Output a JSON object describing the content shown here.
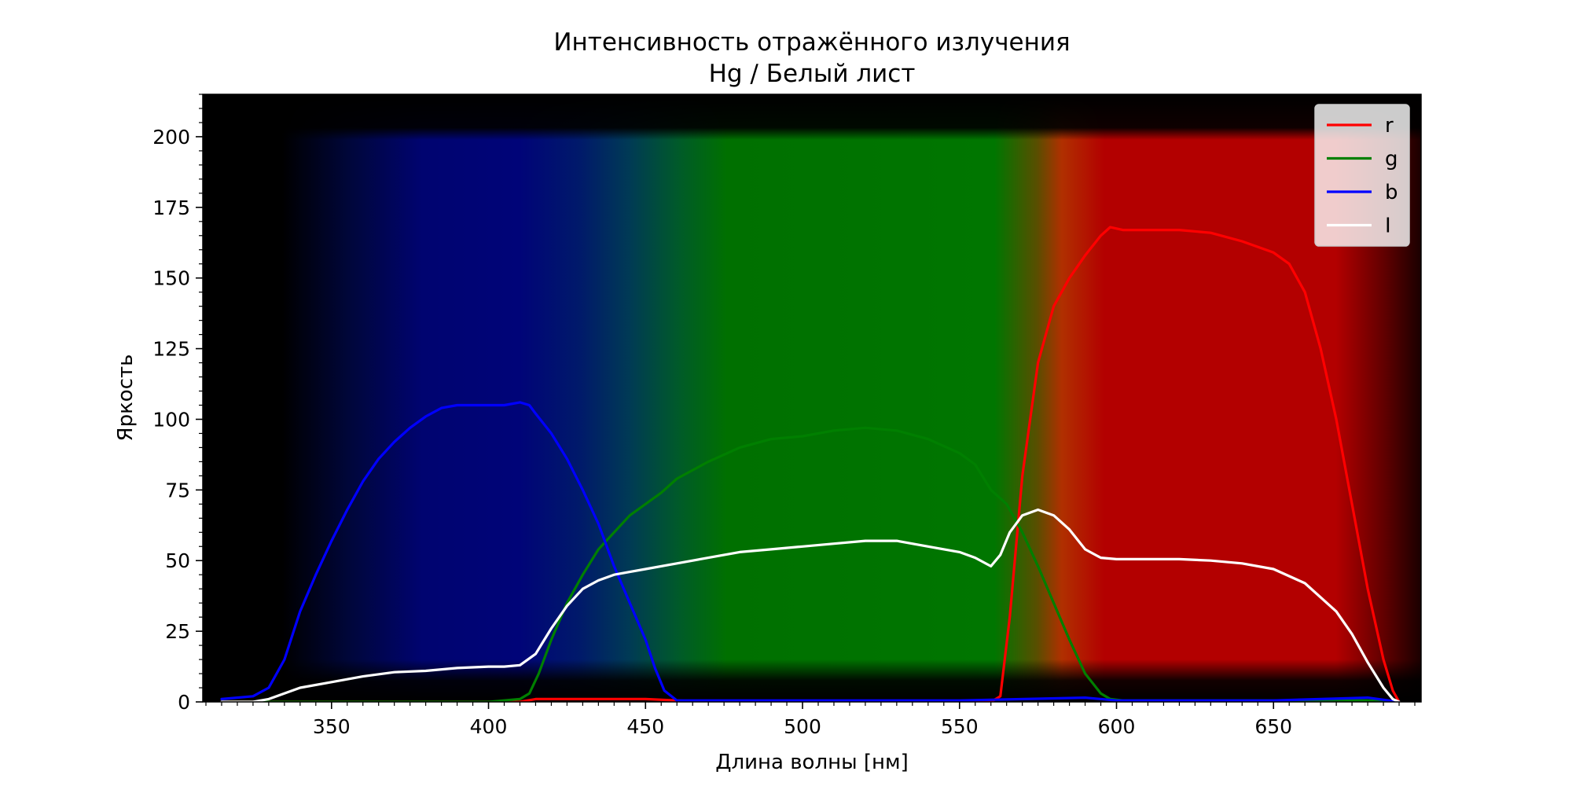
{
  "chart_data": {
    "type": "line",
    "title": "Интенсивность отражённого излучения",
    "subtitle": "Hg / Белый лист",
    "xlabel": "Длина волны [нм]",
    "ylabel": "Яркость",
    "xlim": [
      309,
      697
    ],
    "ylim": [
      0,
      215
    ],
    "xticks": [
      350,
      400,
      450,
      500,
      550,
      600,
      650
    ],
    "yticks": [
      0,
      25,
      50,
      75,
      100,
      125,
      150,
      175,
      200
    ],
    "xtick_labels": [
      "350",
      "400",
      "450",
      "500",
      "550",
      "600",
      "650"
    ],
    "ytick_labels": [
      "0",
      "25",
      "50",
      "75",
      "100",
      "125",
      "150",
      "175",
      "200"
    ],
    "grid": false,
    "legend_position": "top-right",
    "background": "spectrum-image",
    "series": [
      {
        "name": "r",
        "color": "#ff0000",
        "x": [
          315,
          400,
          410,
          415,
          420,
          430,
          450,
          460,
          470,
          500,
          550,
          560,
          563,
          566,
          570,
          575,
          580,
          585,
          590,
          595,
          598,
          602,
          610,
          620,
          630,
          640,
          650,
          655,
          660,
          665,
          670,
          675,
          680,
          685,
          688,
          690
        ],
        "y": [
          0,
          0,
          0,
          1,
          1,
          1,
          1,
          0.5,
          0,
          0,
          0,
          0,
          2,
          30,
          80,
          120,
          140,
          150,
          158,
          165,
          168,
          167,
          167,
          167,
          166,
          163,
          159,
          155,
          145,
          125,
          100,
          70,
          40,
          15,
          4,
          0
        ]
      },
      {
        "name": "g",
        "color": "#007f00",
        "x": [
          315,
          400,
          410,
          413,
          416,
          420,
          425,
          430,
          435,
          440,
          445,
          450,
          455,
          460,
          470,
          480,
          490,
          500,
          510,
          520,
          530,
          540,
          550,
          555,
          560,
          565,
          570,
          575,
          580,
          585,
          590,
          595,
          598,
          602,
          620,
          650,
          680,
          690
        ],
        "y": [
          0,
          0,
          1,
          3,
          10,
          22,
          35,
          45,
          54,
          60,
          66,
          70,
          74,
          79,
          85,
          90,
          93,
          94,
          96,
          97,
          96,
          93,
          88,
          84,
          75,
          70,
          60,
          48,
          35,
          22,
          10,
          3,
          1,
          0.5,
          0.5,
          0.5,
          0.5,
          0
        ]
      },
      {
        "name": "b",
        "color": "#0000ff",
        "x": [
          315,
          325,
          330,
          335,
          340,
          345,
          350,
          355,
          360,
          365,
          370,
          375,
          380,
          385,
          390,
          395,
          400,
          405,
          410,
          413,
          415,
          420,
          425,
          430,
          435,
          440,
          445,
          450,
          453,
          456,
          460,
          465,
          500,
          550,
          590,
          600,
          650,
          680,
          690
        ],
        "y": [
          1,
          2,
          5,
          15,
          32,
          45,
          57,
          68,
          78,
          86,
          92,
          97,
          101,
          104,
          105,
          105,
          105,
          105,
          106,
          105,
          102,
          95,
          86,
          75,
          63,
          48,
          35,
          22,
          12,
          4,
          0.5,
          0.5,
          0.5,
          0.5,
          1.5,
          0.5,
          0.5,
          1.5,
          0
        ]
      },
      {
        "name": "I",
        "color": "#ffffff",
        "x": [
          315,
          325,
          330,
          340,
          350,
          360,
          370,
          380,
          390,
          400,
          405,
          410,
          415,
          420,
          425,
          430,
          435,
          440,
          445,
          450,
          460,
          470,
          480,
          490,
          500,
          510,
          520,
          530,
          540,
          550,
          555,
          560,
          563,
          566,
          570,
          575,
          580,
          585,
          590,
          595,
          600,
          610,
          620,
          630,
          640,
          650,
          660,
          670,
          675,
          680,
          685,
          688,
          690
        ],
        "y": [
          0,
          0,
          1,
          5,
          7,
          9,
          10.5,
          11,
          12,
          12.5,
          12.5,
          13,
          17,
          26,
          34,
          40,
          43,
          45,
          46,
          47,
          49,
          51,
          53,
          54,
          55,
          56,
          57,
          57,
          55,
          53,
          51,
          48,
          52,
          60,
          66,
          68,
          66,
          61,
          54,
          51,
          50.5,
          50.5,
          50.5,
          50,
          49,
          47,
          42,
          32,
          24,
          14,
          5,
          1,
          0
        ]
      }
    ]
  }
}
